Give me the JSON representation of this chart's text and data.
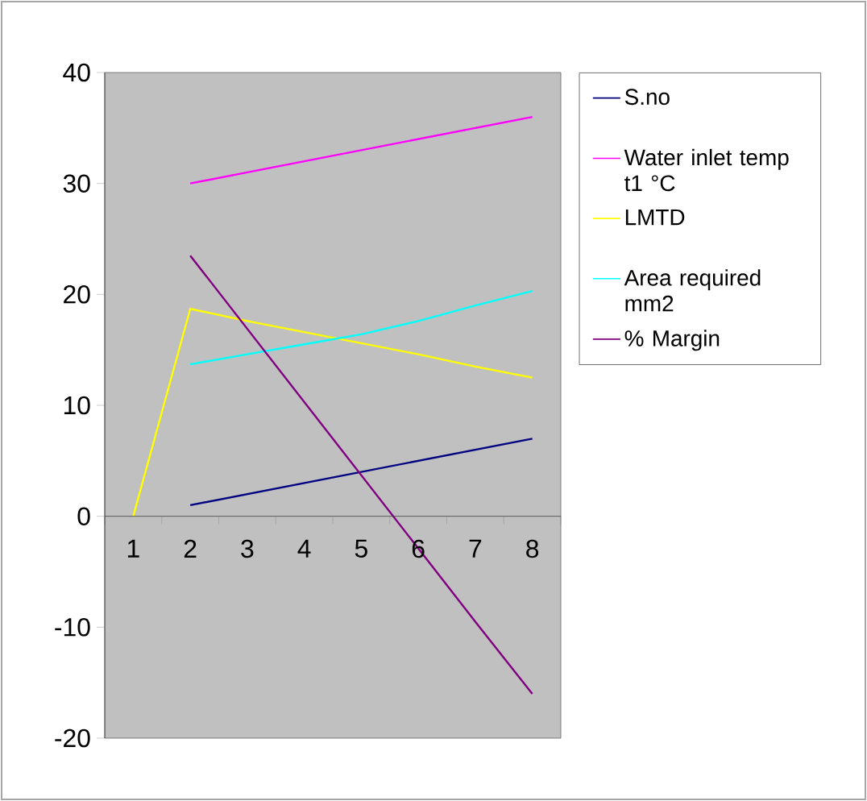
{
  "chart_data": {
    "type": "line",
    "categories": [
      "1",
      "2",
      "3",
      "4",
      "5",
      "6",
      "7",
      "8"
    ],
    "series": [
      {
        "name": "S.no",
        "color": "#000080",
        "values": [
          null,
          1,
          2,
          3,
          4,
          5,
          6,
          7
        ]
      },
      {
        "name": "Water inlet temp t1 °C",
        "color": "#ff00ff",
        "values": [
          null,
          30,
          31,
          32,
          33,
          34,
          35,
          36
        ]
      },
      {
        "name": "LMTD",
        "color": "#ffff00",
        "values": [
          0,
          18.7,
          17.6,
          16.6,
          15.6,
          14.6,
          13.5,
          12.5
        ]
      },
      {
        "name": "Area required mm2",
        "color": "#00ffff",
        "values": [
          null,
          13.7,
          14.6,
          15.5,
          16.4,
          17.6,
          19,
          20.3
        ]
      },
      {
        "name": "% Margin",
        "color": "#800080",
        "values": [
          null,
          23.5,
          16.9,
          10.3,
          3.7,
          -2.9,
          -9.5,
          -16
        ]
      }
    ],
    "ylim": [
      -20,
      40
    ],
    "yticks": [
      -20,
      -10,
      0,
      10,
      20,
      30,
      40
    ],
    "legend": "right",
    "marker": "none",
    "line_style": "solid"
  }
}
